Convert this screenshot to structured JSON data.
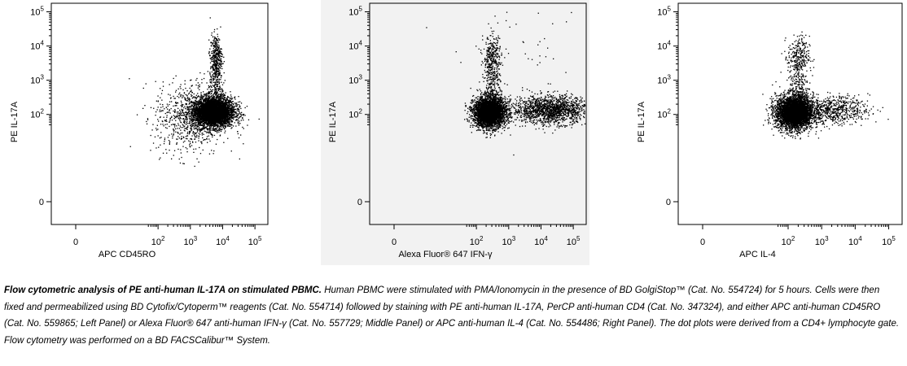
{
  "chart_data": [
    {
      "type": "scatter",
      "panel": "left",
      "background": "#ffffff",
      "xlabel": "APC CD45RO",
      "ylabel": "PE IL-17A",
      "x_ticks": [
        "0",
        "10^2",
        "10^3",
        "10^4",
        "10^5"
      ],
      "y_ticks": [
        "0",
        "10^2",
        "10^3",
        "10^4",
        "10^5"
      ],
      "scale": "biexponential",
      "populations": [
        {
          "center_x": 5000,
          "center_y": 120,
          "description": "dense main cluster"
        },
        {
          "center_x": 6000,
          "center_y": 5000,
          "description": "IL-17A+ cluster"
        }
      ]
    },
    {
      "type": "scatter",
      "panel": "middle",
      "background": "#f2f2f2",
      "xlabel": "Alexa Fluor® 647 IFN-γ",
      "ylabel": "PE IL-17A",
      "x_ticks": [
        "0",
        "10^2",
        "10^3",
        "10^4",
        "10^5"
      ],
      "y_ticks": [
        "0",
        "10^2",
        "10^3",
        "10^4",
        "10^5"
      ],
      "scale": "biexponential",
      "populations": [
        {
          "center_x": 250,
          "center_y": 120,
          "description": "IFN-γ- main cluster"
        },
        {
          "center_x": 20000,
          "center_y": 140,
          "description": "IFN-γ+ band"
        },
        {
          "center_x": 300,
          "center_y": 5000,
          "description": "IL-17A+ cluster"
        }
      ]
    },
    {
      "type": "scatter",
      "panel": "right",
      "background": "#ffffff",
      "xlabel": "APC IL-4",
      "ylabel": "PE IL-17A",
      "x_ticks": [
        "0",
        "10^2",
        "10^3",
        "10^4",
        "10^5"
      ],
      "y_ticks": [
        "0",
        "10^2",
        "10^3",
        "10^4",
        "10^5"
      ],
      "scale": "biexponential",
      "populations": [
        {
          "center_x": 150,
          "center_y": 120,
          "description": "main cluster"
        },
        {
          "center_x": 200,
          "center_y": 5000,
          "description": "IL-17A+ cluster"
        }
      ]
    }
  ],
  "caption": {
    "title": "Flow cytometric analysis of PE anti-human IL-17A on stimulated PBMC.",
    "text": " Human PBMC were stimulated with PMA/Ionomycin in the presence of BD GolgiStop™ (Cat. No. 554724) for 5 hours. Cells were then fixed and permeabilized using BD Cytofix/Cytoperm™ reagents (Cat. No. 554714) followed by staining with PE anti-human IL-17A, PerCP anti-human CD4 (Cat. No. 347324), and either APC anti-human CD45RO (Cat. No. 559865; Left Panel) or Alexa Fluor® 647 anti-human IFN-γ (Cat. No. 557729; Middle Panel) or APC anti-human IL-4 (Cat. No. 554486; Right Panel). The dot plots were derived from a CD4+ lymphocyte gate. Flow cytometry was performed on a BD FACSCalibur™ System."
  }
}
